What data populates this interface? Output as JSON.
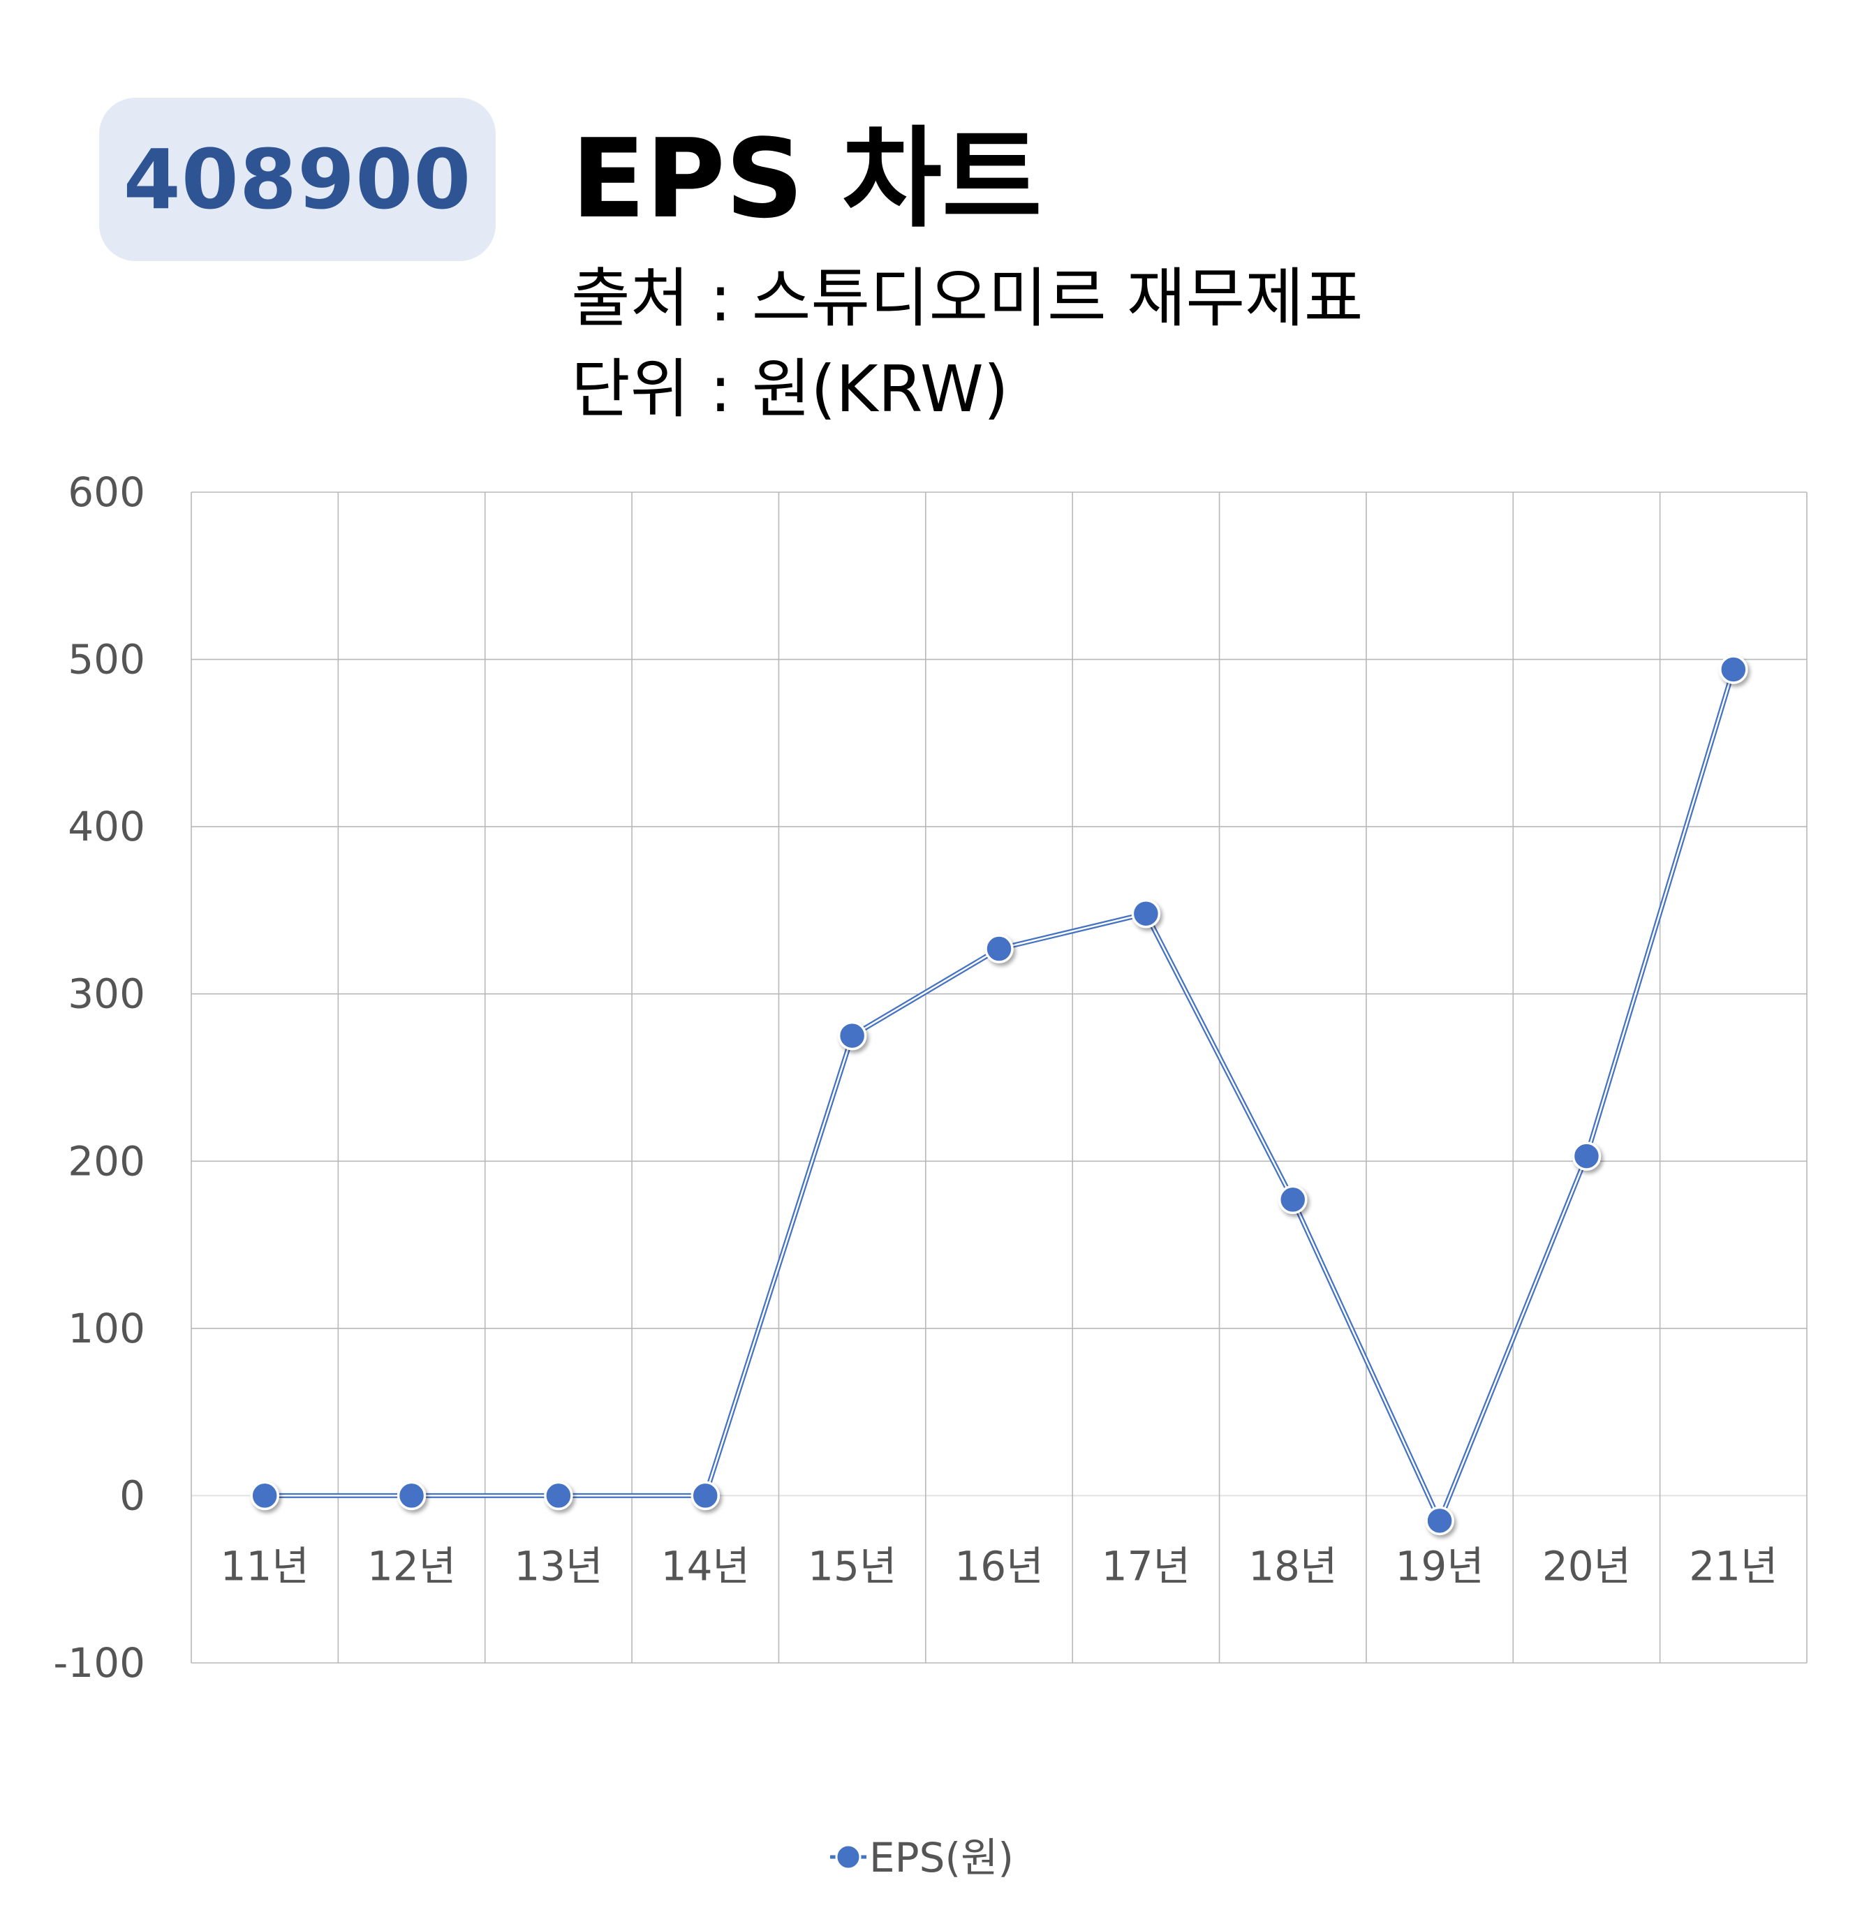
{
  "header": {
    "code": "408900",
    "title": "EPS 차트",
    "source": "출처 : 스튜디오미르 재무제표",
    "unit": "단위 : 원(KRW)"
  },
  "colors": {
    "series": "#4472c4",
    "badge_bg": "#e3e9f5",
    "badge_text": "#2e5494",
    "grid": "#b8b8b8"
  },
  "chart_data": {
    "type": "line",
    "categories": [
      "11년",
      "12년",
      "13년",
      "14년",
      "15년",
      "16년",
      "17년",
      "18년",
      "19년",
      "20년",
      "21년"
    ],
    "series": [
      {
        "name": "EPS(원)",
        "values": [
          0,
          0,
          0,
          0,
          275,
          327,
          348,
          177,
          -15,
          203,
          494
        ]
      }
    ],
    "y_ticks": [
      "600",
      "500",
      "400",
      "300",
      "200",
      "100",
      "0",
      "-100"
    ],
    "ylim": [
      -100,
      600
    ],
    "grid": true,
    "legend": "bottom-center"
  }
}
